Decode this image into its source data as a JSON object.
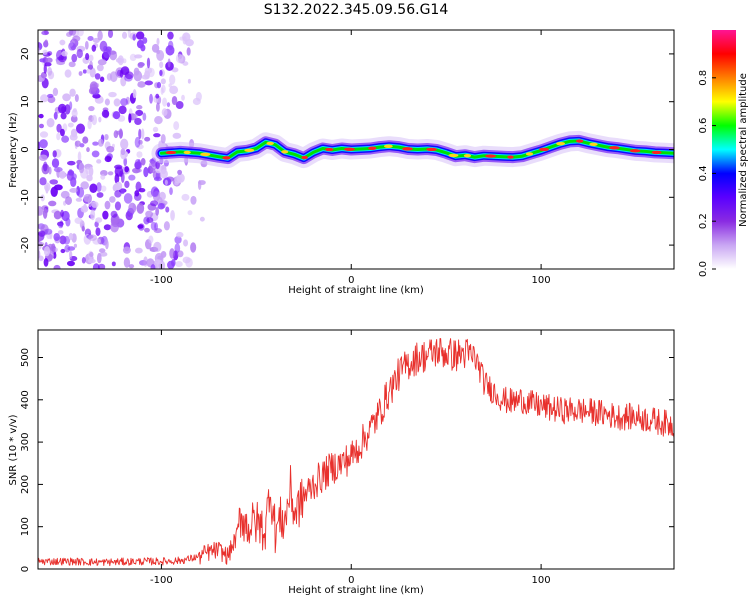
{
  "figure": {
    "title": "S132.2022.345.09.56.G14"
  },
  "chart_data": [
    {
      "type": "heatmap",
      "xlabel": "Height of straight line (km)",
      "ylabel": "Frequency (Hz)",
      "xlim": [
        -165,
        170
      ],
      "ylim": [
        -25,
        25
      ],
      "xticks": [
        -100,
        0,
        100
      ],
      "yticks": [
        -20,
        -10,
        0,
        10,
        20
      ],
      "grid": false,
      "ridge": {
        "x": [
          -100,
          -90,
          -80,
          -70,
          -65,
          -60,
          -55,
          -50,
          -45,
          -40,
          -35,
          -30,
          -25,
          -20,
          -15,
          -10,
          -5,
          0,
          5,
          10,
          15,
          20,
          25,
          30,
          35,
          40,
          45,
          50,
          55,
          60,
          65,
          70,
          75,
          80,
          85,
          90,
          95,
          100,
          105,
          110,
          115,
          120,
          125,
          130,
          135,
          140,
          145,
          150,
          155,
          160,
          165,
          170
        ],
        "y": [
          -0.8,
          -0.5,
          -0.8,
          -1.5,
          -1.8,
          -0.5,
          -0.3,
          0.2,
          1.5,
          1.0,
          -0.5,
          -1.0,
          -1.8,
          -0.6,
          0.2,
          -0.1,
          0.2,
          0.0,
          0.1,
          0.2,
          0.5,
          0.7,
          0.5,
          0.1,
          0.0,
          0.1,
          -0.1,
          -0.7,
          -1.4,
          -1.2,
          -1.6,
          -1.3,
          -1.4,
          -1.5,
          -1.6,
          -1.4,
          -0.8,
          -0.2,
          0.5,
          1.2,
          1.7,
          1.8,
          1.3,
          0.9,
          0.5,
          0.3,
          0.0,
          -0.3,
          -0.4,
          -0.6,
          -0.7,
          -0.8
        ]
      },
      "colorbar": {
        "label": "Normalized spectral amplitude",
        "range": [
          0,
          1
        ],
        "ticks": [
          "0.0",
          "0.2",
          "0.4",
          "0.6",
          "0.8"
        ],
        "tick_values": [
          0,
          0.2,
          0.4,
          0.6,
          0.8
        ],
        "colors": [
          "#ffffff",
          "#c9a6f3",
          "#8a2be2",
          "#5a00ff",
          "#0000ff",
          "#00ffff",
          "#00ff00",
          "#ffff00",
          "#ff7f00",
          "#ff0000",
          "#ff1493"
        ]
      }
    },
    {
      "type": "line",
      "xlabel": "Height of straight line (km)",
      "ylabel": "SNR (10 * v/v)",
      "xlim": [
        -165,
        170
      ],
      "ylim": [
        0,
        565
      ],
      "xticks": [
        -100,
        0,
        100
      ],
      "yticks": [
        0,
        100,
        200,
        300,
        400,
        500
      ],
      "grid": false,
      "series": [
        {
          "color": "#e8302c",
          "x": [
            -165,
            -150,
            -140,
            -130,
            -120,
            -110,
            -100,
            -90,
            -85,
            -80,
            -75,
            -70,
            -65,
            -60,
            -58,
            -55,
            -50,
            -45,
            -43,
            -40,
            -37,
            -35,
            -32,
            -30,
            -25,
            -20,
            -15,
            -10,
            -5,
            0,
            5,
            10,
            15,
            20,
            25,
            30,
            35,
            40,
            45,
            50,
            55,
            60,
            65,
            68,
            70,
            75,
            80,
            85,
            90,
            95,
            100,
            110,
            120,
            130,
            140,
            150,
            160,
            170
          ],
          "y": [
            18,
            18,
            17,
            16,
            17,
            18,
            18,
            20,
            24,
            30,
            40,
            45,
            30,
            80,
            130,
            100,
            110,
            90,
            200,
            90,
            120,
            110,
            190,
            130,
            170,
            200,
            220,
            240,
            250,
            265,
            295,
            330,
            370,
            420,
            460,
            485,
            500,
            505,
            515,
            510,
            505,
            510,
            500,
            470,
            440,
            420,
            400,
            395,
            400,
            390,
            385,
            375,
            375,
            370,
            360,
            360,
            350,
            340
          ]
        }
      ]
    }
  ]
}
